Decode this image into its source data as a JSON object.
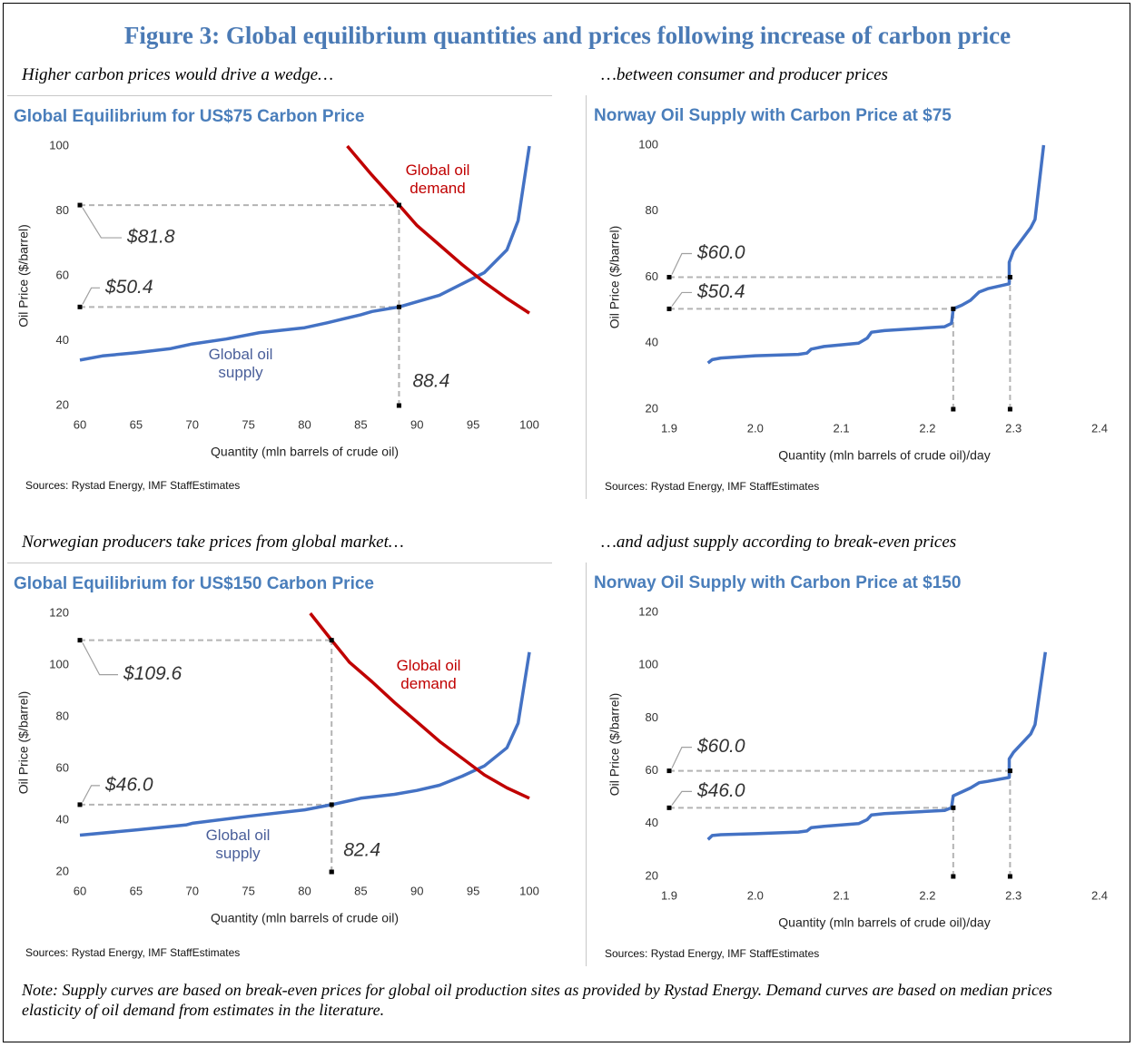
{
  "title": "Figure 3: Global equilibrium quantities and prices following increase of carbon price",
  "captions": [
    "Higher carbon prices would drive a wedge…",
    "…between consumer and producer prices",
    "Norwegian producers take prices from global market…",
    "…and adjust supply according to break-even prices"
  ],
  "note": "Note: Supply curves are based on break-even prices for global oil production sites as provided by Rystad Energy. Demand curves are based on median prices elasticity of oil demand from estimates in the literature.",
  "chart_data": [
    {
      "type": "line",
      "title": "Global Equilibrium for US$75 Carbon Price",
      "x_label": "Quantity (mln barrels of crude oil)",
      "y_label": "Oil Price ($/barrel)",
      "xlim": [
        60,
        100
      ],
      "ylim": [
        20,
        100
      ],
      "xticks": [
        60,
        65,
        70,
        75,
        80,
        85,
        90,
        95,
        100
      ],
      "yticks": [
        20,
        40,
        60,
        80,
        100
      ],
      "series": [
        {
          "name": "Global oil supply",
          "color": "#4472c4",
          "x": [
            60,
            62,
            65,
            68,
            70,
            73,
            76,
            80,
            82,
            85,
            86,
            88.4,
            90,
            92,
            94,
            96,
            98,
            99,
            100
          ],
          "values": [
            34,
            35.3,
            36.3,
            37.5,
            39,
            40.5,
            42.5,
            44,
            45.5,
            48,
            49,
            50.4,
            52,
            54,
            57.5,
            61,
            68,
            77,
            100
          ]
        },
        {
          "name": "Global oil demand",
          "color": "#c00000",
          "x": [
            83.8,
            86,
            88.4,
            90,
            92,
            94,
            96,
            98,
            100
          ],
          "values": [
            100,
            91,
            81.8,
            75.5,
            69.5,
            63.5,
            58,
            53,
            48.5
          ]
        }
      ],
      "guides": [
        {
          "x": 88.4,
          "y": 81.8,
          "label": "$81.8"
        },
        {
          "x": 88.4,
          "y": 50.4,
          "label": "$50.4"
        }
      ],
      "x_annotation": 88.4,
      "source": "Sources: Rystad Energy, IMF StaffEstimates"
    },
    {
      "type": "line",
      "title": "Norway Oil Supply with Carbon Price at $75",
      "x_label": "Quantity (mln barrels of crude oil)/day",
      "y_label": "Oil Price ($/barrel)",
      "xlim": [
        1.9,
        2.4
      ],
      "ylim": [
        20,
        100
      ],
      "xticks": [
        1.9,
        {
          "value": 2,
          "label": "2.0"
        },
        2.1,
        2.2,
        2.3,
        2.4
      ],
      "yticks": [
        20,
        40,
        60,
        80,
        100
      ],
      "series": [
        {
          "color": "#4472c4",
          "x": [
            1.945,
            1.95,
            1.96,
            2.0,
            2.05,
            2.06,
            2.065,
            2.08,
            2.12,
            2.13,
            2.135,
            2.15,
            2.22,
            2.228,
            2.23,
            2.24,
            2.25,
            2.26,
            2.27,
            2.295,
            2.295,
            2.3,
            2.32,
            2.325,
            2.335
          ],
          "values": [
            34,
            35,
            35.5,
            36.2,
            36.6,
            37,
            38.2,
            39,
            40,
            41.5,
            43.3,
            43.8,
            45,
            46,
            50.4,
            51.5,
            53,
            55.5,
            56.5,
            58,
            64.5,
            68,
            75,
            77.5,
            100
          ]
        }
      ],
      "guides": [
        {
          "x": 2.296,
          "y": 60,
          "label": "$60.0"
        },
        {
          "x": 2.23,
          "y": 50.4,
          "label": "$50.4"
        }
      ],
      "source": "Sources: Rystad Energy, IMF StaffEstimates"
    },
    {
      "type": "line",
      "title": "Global Equilibrium for US$150 Carbon Price",
      "x_label": "Quantity (mln barrels of crude oil)",
      "y_label": "Oil Price ($/barrel)",
      "xlim": [
        60,
        100
      ],
      "ylim": [
        20,
        120
      ],
      "xticks": [
        60,
        65,
        70,
        75,
        80,
        85,
        90,
        95,
        100
      ],
      "yticks": [
        20,
        40,
        60,
        80,
        100,
        120
      ],
      "series": [
        {
          "name": "Global oil supply",
          "color": "#4472c4",
          "x": [
            60,
            65,
            69.5,
            70,
            75,
            80,
            82.4,
            85,
            88,
            90,
            92,
            94,
            96,
            98,
            99,
            100
          ],
          "values": [
            34.2,
            36.2,
            38.2,
            38.8,
            41.5,
            44,
            46,
            48.5,
            50,
            51.5,
            53.5,
            57,
            61,
            68,
            77.5,
            105
          ]
        },
        {
          "name": "Global oil demand",
          "color": "#c00000",
          "x": [
            80.5,
            82.4,
            84,
            86,
            88,
            90,
            92,
            94,
            96,
            98,
            100
          ],
          "values": [
            120,
            109.6,
            101,
            93.5,
            85.5,
            78,
            70.5,
            64,
            57.5,
            52.5,
            48.5
          ]
        }
      ],
      "guides": [
        {
          "x": 82.4,
          "y": 109.6,
          "label": "$109.6"
        },
        {
          "x": 82.4,
          "y": 46,
          "label": "$46.0"
        }
      ],
      "x_annotation": 82.4,
      "source": "Sources: Rystad Energy, IMF StaffEstimates"
    },
    {
      "type": "line",
      "title": "Norway Oil Supply with Carbon Price at $150",
      "x_label": "Quantity (mln barrels of crude oil)/day",
      "y_label": "Oil Price ($/barrel)",
      "xlim": [
        1.9,
        2.4
      ],
      "ylim": [
        20,
        120
      ],
      "xticks": [
        1.9,
        {
          "value": 2,
          "label": "2.0"
        },
        2.1,
        2.2,
        2.3,
        2.4
      ],
      "yticks": [
        20,
        40,
        60,
        80,
        100,
        120
      ],
      "series": [
        {
          "color": "#4472c4",
          "x": [
            1.945,
            1.95,
            1.96,
            2.0,
            2.05,
            2.06,
            2.065,
            2.08,
            2.12,
            2.13,
            2.135,
            2.15,
            2.22,
            2.228,
            2.23,
            2.24,
            2.25,
            2.26,
            2.27,
            2.295,
            2.295,
            2.3,
            2.32,
            2.325,
            2.337
          ],
          "values": [
            34,
            35.5,
            35.8,
            36.2,
            36.8,
            37.2,
            38.5,
            39,
            40,
            41.5,
            43.3,
            43.8,
            45,
            46,
            50.5,
            52,
            53.5,
            55.5,
            56,
            57.5,
            64.5,
            67,
            74,
            77.5,
            105
          ]
        }
      ],
      "guides": [
        {
          "x": 2.296,
          "y": 60,
          "label": "$60.0"
        },
        {
          "x": 2.23,
          "y": 46,
          "label": "$46.0"
        }
      ],
      "source": "Sources: Rystad Energy, IMF StaffEstimates"
    }
  ]
}
